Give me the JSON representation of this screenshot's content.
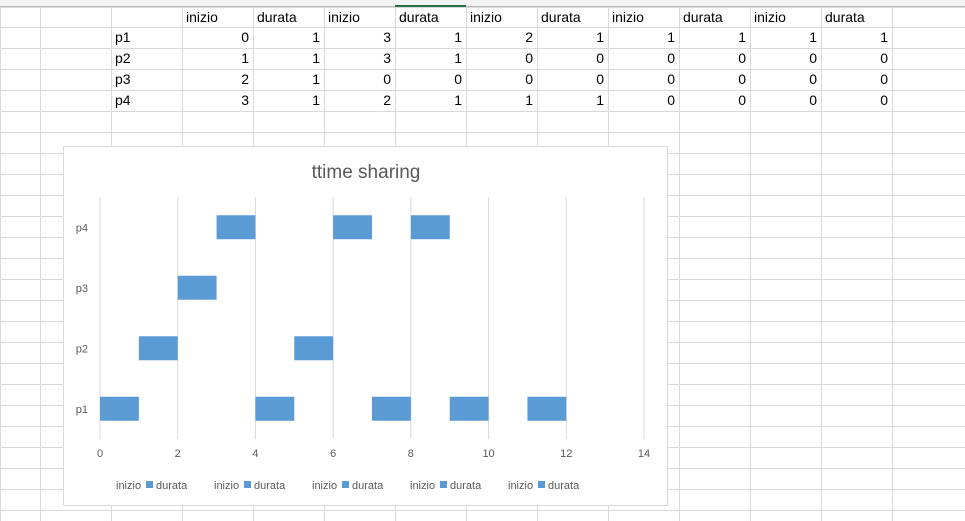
{
  "sheet": {
    "rows": [
      [
        "",
        "inizio",
        "durata",
        "inizio",
        "durata",
        "inizio",
        "durata",
        "inizio",
        "durata",
        "inizio",
        "durata"
      ],
      [
        "p1",
        "0",
        "1",
        "3",
        "1",
        "2",
        "1",
        "1",
        "1",
        "1",
        "1"
      ],
      [
        "p2",
        "1",
        "1",
        "3",
        "1",
        "0",
        "0",
        "0",
        "0",
        "0",
        "0"
      ],
      [
        "p3",
        "2",
        "1",
        "0",
        "0",
        "0",
        "0",
        "0",
        "0",
        "0",
        "0"
      ],
      [
        "p4",
        "3",
        "1",
        "2",
        "1",
        "1",
        "1",
        "0",
        "0",
        "0",
        "0"
      ]
    ]
  },
  "chart_data": {
    "type": "bar",
    "orientation": "horizontal",
    "stacked": true,
    "title": "ttime sharing",
    "categories": [
      "p1",
      "p2",
      "p3",
      "p4"
    ],
    "series": [
      {
        "name": "inizio",
        "values": [
          0,
          1,
          2,
          3
        ],
        "visible": false
      },
      {
        "name": "durata",
        "values": [
          1,
          1,
          1,
          1
        ],
        "visible": true
      },
      {
        "name": "inizio",
        "values": [
          3,
          3,
          0,
          2
        ],
        "visible": false
      },
      {
        "name": "durata",
        "values": [
          1,
          1,
          0,
          1
        ],
        "visible": true
      },
      {
        "name": "inizio",
        "values": [
          2,
          0,
          0,
          1
        ],
        "visible": false
      },
      {
        "name": "durata",
        "values": [
          1,
          0,
          0,
          1
        ],
        "visible": true
      },
      {
        "name": "inizio",
        "values": [
          1,
          0,
          0,
          0
        ],
        "visible": false
      },
      {
        "name": "durata",
        "values": [
          1,
          0,
          0,
          0
        ],
        "visible": true
      },
      {
        "name": "inizio",
        "values": [
          1,
          0,
          0,
          0
        ],
        "visible": false
      },
      {
        "name": "durata",
        "values": [
          1,
          0,
          0,
          0
        ],
        "visible": true
      }
    ],
    "xlim": [
      0,
      14
    ],
    "xticks": [
      "0",
      "2",
      "4",
      "6",
      "8",
      "10",
      "12",
      "14"
    ],
    "grid": "vertical",
    "legend": "bottom",
    "colors": {
      "bar": "#5b9bd5",
      "grid": "#d9d9d9",
      "text": "#595959"
    }
  }
}
